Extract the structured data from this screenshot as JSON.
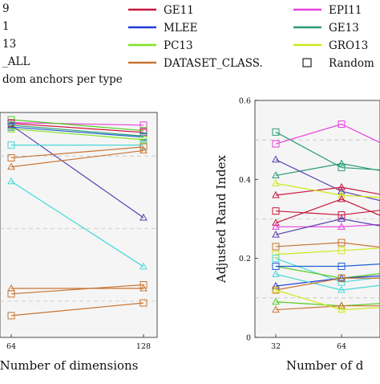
{
  "legend": {
    "entries": [
      {
        "label": "9",
        "color": "#2ca02c",
        "marker": "line"
      },
      {
        "label": "1",
        "color": "#1f5fd6",
        "marker": "line"
      },
      {
        "label": "13",
        "color": "#55cc22",
        "marker": "line"
      },
      {
        "label": "_ALL",
        "color": "#c87533",
        "marker": "line"
      },
      {
        "label": "dom anchors per type",
        "color": "#e377c2",
        "marker": "line"
      },
      {
        "label": "GE11",
        "color": "#c7163b",
        "marker": "line"
      },
      {
        "label": "MLEE",
        "color": "#1f3ddb",
        "marker": "line"
      },
      {
        "label": "PC13",
        "color": "#7ee51f",
        "marker": "line"
      },
      {
        "label": "DATASET_CLASS.",
        "color": "#c87533",
        "marker": "line"
      },
      {
        "label": "EPI11",
        "color": "#e83fe0",
        "marker": "line"
      },
      {
        "label": "GE13",
        "color": "#2a9b72",
        "marker": "line"
      },
      {
        "label": "GRO13",
        "color": "#cfe81c",
        "marker": "line"
      },
      {
        "label": "Random",
        "color": "#333333",
        "marker": "square"
      }
    ]
  },
  "chart_data": [
    {
      "type": "line",
      "xlabel": "Number of dimensions",
      "ylabel": "",
      "x_ticks": [
        "64",
        "128"
      ],
      "y_ticks": [],
      "grid": true,
      "series": [
        {
          "color": "#e83fe0",
          "marker": "square",
          "points": [
            [
              64,
              0.592
            ],
            [
              128,
              0.585
            ]
          ]
        },
        {
          "color": "#55cc22",
          "marker": "square",
          "points": [
            [
              64,
              0.6
            ],
            [
              128,
              0.57
            ]
          ]
        },
        {
          "color": "#c7163b",
          "marker": "square",
          "points": [
            [
              64,
              0.59
            ],
            [
              128,
              0.565
            ]
          ]
        },
        {
          "color": "#2a9b72",
          "marker": "square",
          "points": [
            [
              64,
              0.585
            ],
            [
              128,
              0.555
            ]
          ]
        },
        {
          "color": "#1f5fd6",
          "marker": "square",
          "points": [
            [
              64,
              0.58
            ],
            [
              128,
              0.552
            ]
          ]
        },
        {
          "color": "#7ee51f",
          "marker": "square",
          "points": [
            [
              64,
              0.575
            ],
            [
              128,
              0.545
            ]
          ]
        },
        {
          "color": "#5a3fb0",
          "marker": "triangle",
          "points": [
            [
              64,
              0.585
            ],
            [
              128,
              0.33
            ]
          ]
        },
        {
          "color": "#48d8d8",
          "marker": "square",
          "points": [
            [
              64,
              0.53
            ],
            [
              128,
              0.53
            ]
          ]
        },
        {
          "color": "#48d8d8",
          "marker": "triangle",
          "points": [
            [
              64,
              0.43
            ],
            [
              128,
              0.195
            ]
          ]
        },
        {
          "color": "#c87533",
          "marker": "square",
          "points": [
            [
              64,
              0.495
            ],
            [
              128,
              0.525
            ]
          ]
        },
        {
          "color": "#c87533",
          "marker": "triangle",
          "points": [
            [
              64,
              0.47
            ],
            [
              128,
              0.515
            ]
          ]
        },
        {
          "color": "#c87533",
          "marker": "square",
          "points": [
            [
              64,
              0.12
            ],
            [
              128,
              0.145
            ]
          ]
        },
        {
          "color": "#c87533",
          "marker": "triangle",
          "points": [
            [
              64,
              0.135
            ],
            [
              128,
              0.135
            ]
          ]
        },
        {
          "color": "#c87533",
          "marker": "square",
          "points": [
            [
              64,
              0.06
            ],
            [
              128,
              0.095
            ]
          ]
        }
      ]
    },
    {
      "type": "line",
      "ylabel": "Adjusted Rand Index",
      "xlabel": "Number of d",
      "x_ticks": [
        "32",
        "64"
      ],
      "y_ticks": [
        "0",
        "0.2",
        "0.4",
        "0.6"
      ],
      "ylim": [
        0,
        0.6
      ],
      "grid": true,
      "series": [
        {
          "color": "#2a9b72",
          "marker": "square",
          "points": [
            [
              32,
              0.52
            ],
            [
              64,
              0.43
            ],
            [
              96,
              0.42
            ]
          ]
        },
        {
          "color": "#e83fe0",
          "marker": "square",
          "points": [
            [
              32,
              0.49
            ],
            [
              64,
              0.54
            ],
            [
              96,
              0.46
            ]
          ]
        },
        {
          "color": "#2a9b72",
          "marker": "triangle",
          "points": [
            [
              32,
              0.41
            ],
            [
              64,
              0.44
            ],
            [
              96,
              0.41
            ]
          ]
        },
        {
          "color": "#5a3fb0",
          "marker": "triangle",
          "points": [
            [
              32,
              0.45
            ],
            [
              64,
              0.37
            ],
            [
              96,
              0.33
            ]
          ]
        },
        {
          "color": "#c7163b",
          "marker": "triangle",
          "points": [
            [
              32,
              0.36
            ],
            [
              64,
              0.38
            ],
            [
              96,
              0.35
            ]
          ]
        },
        {
          "color": "#cfe81c",
          "marker": "triangle",
          "points": [
            [
              32,
              0.39
            ],
            [
              64,
              0.36
            ],
            [
              96,
              0.35
            ]
          ]
        },
        {
          "color": "#c7163b",
          "marker": "square",
          "points": [
            [
              32,
              0.32
            ],
            [
              64,
              0.31
            ],
            [
              96,
              0.33
            ]
          ]
        },
        {
          "color": "#c7163b",
          "marker": "triangle",
          "points": [
            [
              32,
              0.29
            ],
            [
              64,
              0.35
            ],
            [
              96,
              0.28
            ]
          ]
        },
        {
          "color": "#e83fe0",
          "marker": "triangle",
          "points": [
            [
              32,
              0.28
            ],
            [
              64,
              0.28
            ],
            [
              96,
              0.29
            ]
          ]
        },
        {
          "color": "#5a3fb0",
          "marker": "triangle",
          "points": [
            [
              32,
              0.26
            ],
            [
              64,
              0.3
            ],
            [
              96,
              0.27
            ]
          ]
        },
        {
          "color": "#c87533",
          "marker": "square",
          "points": [
            [
              32,
              0.23
            ],
            [
              64,
              0.24
            ],
            [
              96,
              0.22
            ]
          ]
        },
        {
          "color": "#cfe81c",
          "marker": "square",
          "points": [
            [
              32,
              0.21
            ],
            [
              64,
              0.22
            ],
            [
              96,
              0.23
            ]
          ]
        },
        {
          "color": "#48d8d8",
          "marker": "square",
          "points": [
            [
              32,
              0.2
            ],
            [
              64,
              0.14
            ],
            [
              96,
              0.16
            ]
          ]
        },
        {
          "color": "#55cc22",
          "marker": "square",
          "points": [
            [
              32,
              0.18
            ],
            [
              64,
              0.15
            ],
            [
              96,
              0.17
            ]
          ]
        },
        {
          "color": "#1f5fd6",
          "marker": "square",
          "points": [
            [
              32,
              0.18
            ],
            [
              64,
              0.18
            ],
            [
              96,
              0.19
            ]
          ]
        },
        {
          "color": "#1f3ddb",
          "marker": "triangle",
          "points": [
            [
              32,
              0.13
            ],
            [
              64,
              0.15
            ],
            [
              96,
              0.16
            ]
          ]
        },
        {
          "color": "#48d8d8",
          "marker": "triangle",
          "points": [
            [
              32,
              0.16
            ],
            [
              64,
              0.12
            ],
            [
              96,
              0.14
            ]
          ]
        },
        {
          "color": "#c87533",
          "marker": "square",
          "points": [
            [
              32,
              0.12
            ],
            [
              64,
              0.15
            ],
            [
              96,
              0.15
            ]
          ]
        },
        {
          "color": "#55cc22",
          "marker": "triangle",
          "points": [
            [
              32,
              0.09
            ],
            [
              64,
              0.08
            ],
            [
              96,
              0.09
            ]
          ]
        },
        {
          "color": "#c87533",
          "marker": "triangle",
          "points": [
            [
              32,
              0.07
            ],
            [
              64,
              0.08
            ],
            [
              96,
              0.08
            ]
          ]
        },
        {
          "color": "#cfe81c",
          "marker": "triangle",
          "points": [
            [
              32,
              0.12
            ],
            [
              64,
              0.07
            ],
            [
              96,
              0.08
            ]
          ]
        }
      ]
    }
  ]
}
